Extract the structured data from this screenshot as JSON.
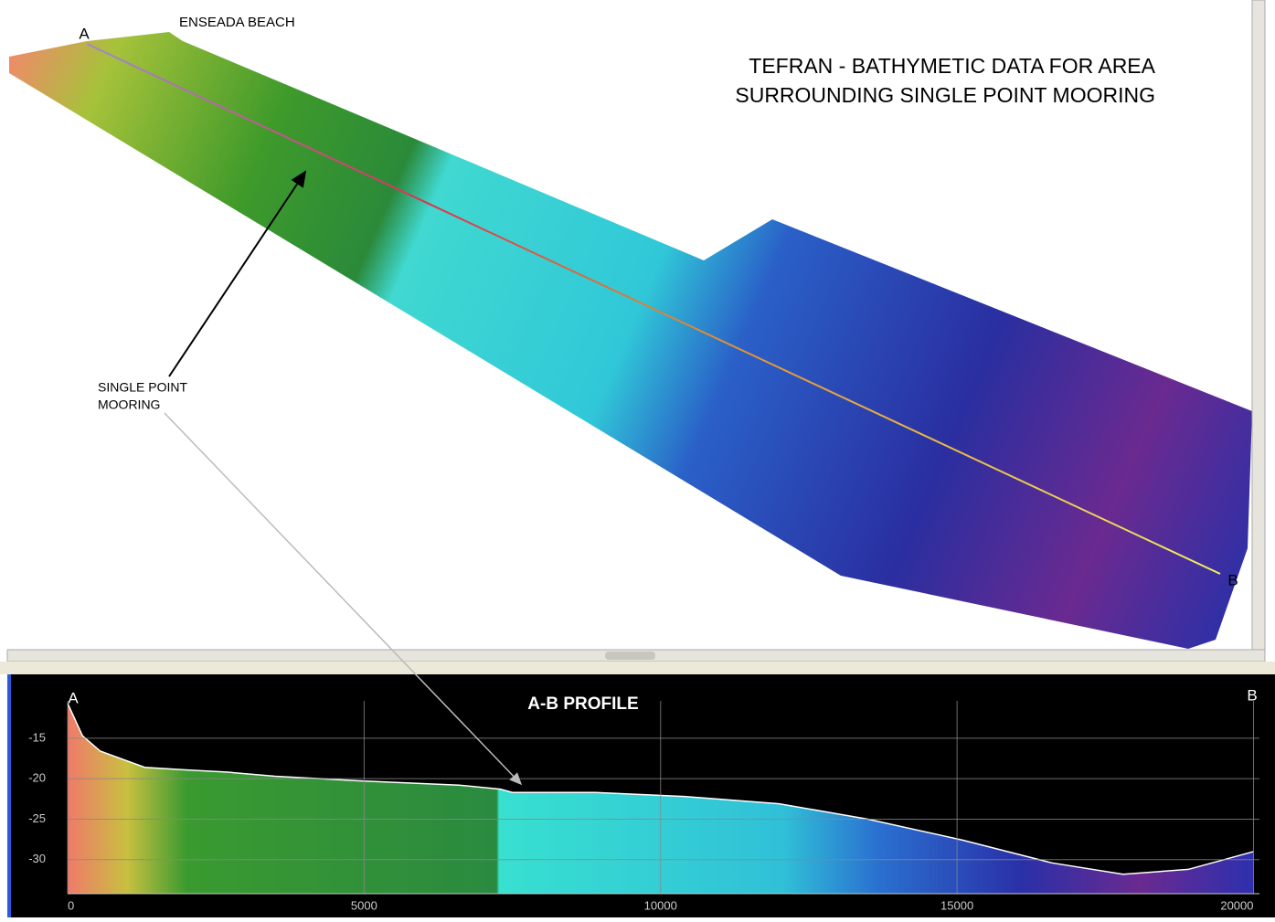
{
  "map_view": {
    "title_lines": [
      "TEFRAN - BATHYMETIC DATA FOR AREA",
      "SURROUNDING SINGLE POINT MOORING"
    ],
    "beach_label": "ENSEADA BEACH",
    "point_a": "A",
    "point_b": "B",
    "mooring_lines": [
      "SINGLE POINT",
      "MOORING"
    ]
  },
  "chart_data": {
    "type": "area",
    "title": "A-B PROFILE",
    "start_label": "A",
    "end_label": "B",
    "x": [
      0,
      250,
      550,
      1300,
      1950,
      2700,
      3500,
      5000,
      6600,
      7300,
      7500,
      8900,
      10400,
      12000,
      13500,
      15100,
      16600,
      17800,
      18900,
      20000
    ],
    "values": [
      -10.7,
      -14.7,
      -16.6,
      -18.6,
      -18.9,
      -19.2,
      -19.7,
      -20.3,
      -20.8,
      -21.3,
      -21.7,
      -21.7,
      -22.2,
      -23.1,
      -25,
      -27.6,
      -30.4,
      -31.8,
      -31.2,
      -29
    ],
    "xlim": [
      0,
      20100
    ],
    "ylim": [
      -34.2,
      -8.7
    ],
    "xticks": [
      0,
      5000,
      10000,
      15000,
      20000
    ],
    "yticks": [
      -15,
      -20,
      -25,
      -30
    ],
    "grid": true,
    "line_color": "#ffffff"
  }
}
